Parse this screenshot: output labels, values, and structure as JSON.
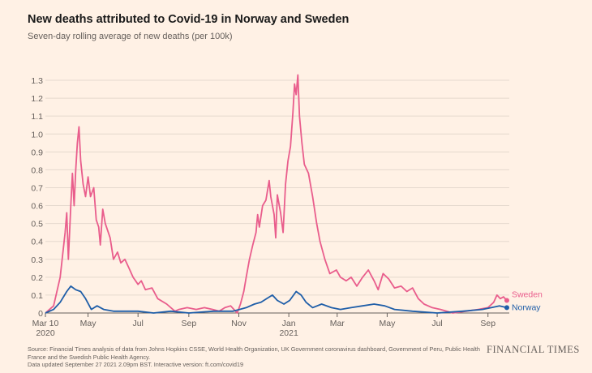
{
  "header": {
    "title": "New deaths attributed to Covid-19 in Norway and Sweden",
    "subtitle": "Seven-day rolling average of new deaths (per 100k)"
  },
  "footer": {
    "source": "Source: Financial Times analysis of data from Johns Hopkins CSSE, World Health Organization, UK Government coronavirus dashboard, Government of Peru, Public Health France and the Swedish Public Health Agency.",
    "updated": "Data updated September 27 2021 2.09pm BST. Interactive version: ft.com/covid19",
    "brand": "FINANCIAL TIMES"
  },
  "chart_data": {
    "type": "line",
    "title": "New deaths attributed to Covid-19 in Norway and Sweden",
    "subtitle": "Seven-day rolling average of new deaths (per 100k)",
    "xlabel": "",
    "ylabel": "",
    "x_range": [
      "2020-03-10",
      "2021-09-27"
    ],
    "ylim": [
      0,
      1.35
    ],
    "y_ticks": [
      "0",
      "0.1",
      "0.2",
      "0.3",
      "0.4",
      "0.5",
      "0.6",
      "0.7",
      "0.8",
      "0.9",
      "1.0",
      "1.1",
      "1.2",
      "1.3"
    ],
    "x_ticks": [
      {
        "date": "2020-03-10",
        "label": "Mar 10",
        "sublabel": "2020"
      },
      {
        "date": "2020-05-01",
        "label": "May",
        "sublabel": ""
      },
      {
        "date": "2020-07-01",
        "label": "Jul",
        "sublabel": ""
      },
      {
        "date": "2020-09-01",
        "label": "Sep",
        "sublabel": ""
      },
      {
        "date": "2020-11-01",
        "label": "Nov",
        "sublabel": ""
      },
      {
        "date": "2021-01-01",
        "label": "Jan",
        "sublabel": "2021"
      },
      {
        "date": "2021-03-01",
        "label": "Mar",
        "sublabel": ""
      },
      {
        "date": "2021-05-01",
        "label": "May",
        "sublabel": ""
      },
      {
        "date": "2021-07-01",
        "label": "Jul",
        "sublabel": ""
      },
      {
        "date": "2021-09-01",
        "label": "Sep",
        "sublabel": ""
      }
    ],
    "grid": true,
    "legend": "direct labels at line ends",
    "series": [
      {
        "name": "Sweden",
        "color": "#e95d8c",
        "points": [
          [
            "2020-03-10",
            0.0
          ],
          [
            "2020-03-20",
            0.04
          ],
          [
            "2020-03-28",
            0.2
          ],
          [
            "2020-04-03",
            0.45
          ],
          [
            "2020-04-05",
            0.56
          ],
          [
            "2020-04-07",
            0.3
          ],
          [
            "2020-04-10",
            0.6
          ],
          [
            "2020-04-12",
            0.78
          ],
          [
            "2020-04-14",
            0.6
          ],
          [
            "2020-04-16",
            0.8
          ],
          [
            "2020-04-18",
            0.95
          ],
          [
            "2020-04-20",
            1.04
          ],
          [
            "2020-04-22",
            0.85
          ],
          [
            "2020-04-25",
            0.72
          ],
          [
            "2020-04-28",
            0.65
          ],
          [
            "2020-05-01",
            0.76
          ],
          [
            "2020-05-04",
            0.65
          ],
          [
            "2020-05-08",
            0.7
          ],
          [
            "2020-05-11",
            0.52
          ],
          [
            "2020-05-14",
            0.48
          ],
          [
            "2020-05-16",
            0.38
          ],
          [
            "2020-05-19",
            0.58
          ],
          [
            "2020-05-22",
            0.5
          ],
          [
            "2020-05-28",
            0.42
          ],
          [
            "2020-06-01",
            0.3
          ],
          [
            "2020-06-06",
            0.34
          ],
          [
            "2020-06-10",
            0.28
          ],
          [
            "2020-06-15",
            0.3
          ],
          [
            "2020-06-20",
            0.25
          ],
          [
            "2020-06-25",
            0.2
          ],
          [
            "2020-07-01",
            0.16
          ],
          [
            "2020-07-05",
            0.18
          ],
          [
            "2020-07-10",
            0.13
          ],
          [
            "2020-07-18",
            0.14
          ],
          [
            "2020-07-25",
            0.08
          ],
          [
            "2020-08-05",
            0.05
          ],
          [
            "2020-08-15",
            0.01
          ],
          [
            "2020-08-20",
            0.02
          ],
          [
            "2020-08-30",
            0.03
          ],
          [
            "2020-09-10",
            0.02
          ],
          [
            "2020-09-20",
            0.03
          ],
          [
            "2020-09-30",
            0.02
          ],
          [
            "2020-10-08",
            0.01
          ],
          [
            "2020-10-15",
            0.03
          ],
          [
            "2020-10-22",
            0.04
          ],
          [
            "2020-10-30",
            0.0
          ],
          [
            "2020-11-03",
            0.05
          ],
          [
            "2020-11-07",
            0.12
          ],
          [
            "2020-11-10",
            0.2
          ],
          [
            "2020-11-14",
            0.3
          ],
          [
            "2020-11-18",
            0.38
          ],
          [
            "2020-11-22",
            0.45
          ],
          [
            "2020-11-24",
            0.55
          ],
          [
            "2020-11-26",
            0.48
          ],
          [
            "2020-11-30",
            0.6
          ],
          [
            "2020-12-04",
            0.63
          ],
          [
            "2020-12-08",
            0.74
          ],
          [
            "2020-12-10",
            0.65
          ],
          [
            "2020-12-14",
            0.55
          ],
          [
            "2020-12-16",
            0.42
          ],
          [
            "2020-12-18",
            0.66
          ],
          [
            "2020-12-22",
            0.56
          ],
          [
            "2020-12-25",
            0.45
          ],
          [
            "2020-12-28",
            0.72
          ],
          [
            "2020-12-31",
            0.85
          ],
          [
            "2021-01-03",
            0.93
          ],
          [
            "2021-01-06",
            1.12
          ],
          [
            "2021-01-08",
            1.28
          ],
          [
            "2021-01-10",
            1.22
          ],
          [
            "2021-01-12",
            1.33
          ],
          [
            "2021-01-14",
            1.1
          ],
          [
            "2021-01-17",
            0.95
          ],
          [
            "2021-01-20",
            0.83
          ],
          [
            "2021-01-25",
            0.78
          ],
          [
            "2021-01-30",
            0.65
          ],
          [
            "2021-02-04",
            0.5
          ],
          [
            "2021-02-08",
            0.4
          ],
          [
            "2021-02-14",
            0.3
          ],
          [
            "2021-02-20",
            0.22
          ],
          [
            "2021-02-28",
            0.24
          ],
          [
            "2021-03-05",
            0.2
          ],
          [
            "2021-03-12",
            0.18
          ],
          [
            "2021-03-18",
            0.2
          ],
          [
            "2021-03-25",
            0.15
          ],
          [
            "2021-04-01",
            0.2
          ],
          [
            "2021-04-08",
            0.24
          ],
          [
            "2021-04-15",
            0.18
          ],
          [
            "2021-04-20",
            0.13
          ],
          [
            "2021-04-26",
            0.22
          ],
          [
            "2021-05-03",
            0.19
          ],
          [
            "2021-05-10",
            0.14
          ],
          [
            "2021-05-18",
            0.15
          ],
          [
            "2021-05-25",
            0.12
          ],
          [
            "2021-06-01",
            0.14
          ],
          [
            "2021-06-08",
            0.08
          ],
          [
            "2021-06-15",
            0.05
          ],
          [
            "2021-06-25",
            0.03
          ],
          [
            "2021-07-05",
            0.02
          ],
          [
            "2021-07-20",
            0.0
          ],
          [
            "2021-08-05",
            0.01
          ],
          [
            "2021-08-20",
            0.02
          ],
          [
            "2021-09-01",
            0.03
          ],
          [
            "2021-09-08",
            0.06
          ],
          [
            "2021-09-12",
            0.1
          ],
          [
            "2021-09-16",
            0.08
          ],
          [
            "2021-09-20",
            0.09
          ],
          [
            "2021-09-24",
            0.07
          ]
        ]
      },
      {
        "name": "Norway",
        "color": "#1f5ea8",
        "points": [
          [
            "2020-03-10",
            0.0
          ],
          [
            "2020-03-20",
            0.02
          ],
          [
            "2020-03-28",
            0.06
          ],
          [
            "2020-04-05",
            0.12
          ],
          [
            "2020-04-10",
            0.15
          ],
          [
            "2020-04-16",
            0.13
          ],
          [
            "2020-04-22",
            0.12
          ],
          [
            "2020-04-28",
            0.08
          ],
          [
            "2020-05-05",
            0.02
          ],
          [
            "2020-05-12",
            0.04
          ],
          [
            "2020-05-20",
            0.02
          ],
          [
            "2020-06-01",
            0.01
          ],
          [
            "2020-06-15",
            0.01
          ],
          [
            "2020-07-01",
            0.01
          ],
          [
            "2020-07-20",
            0.0
          ],
          [
            "2020-08-10",
            0.01
          ],
          [
            "2020-09-01",
            0.0
          ],
          [
            "2020-10-01",
            0.01
          ],
          [
            "2020-10-25",
            0.01
          ],
          [
            "2020-11-10",
            0.03
          ],
          [
            "2020-11-20",
            0.05
          ],
          [
            "2020-11-28",
            0.06
          ],
          [
            "2020-12-05",
            0.08
          ],
          [
            "2020-12-12",
            0.1
          ],
          [
            "2020-12-18",
            0.07
          ],
          [
            "2020-12-26",
            0.05
          ],
          [
            "2021-01-02",
            0.07
          ],
          [
            "2021-01-10",
            0.12
          ],
          [
            "2021-01-16",
            0.1
          ],
          [
            "2021-01-22",
            0.06
          ],
          [
            "2021-01-30",
            0.03
          ],
          [
            "2021-02-10",
            0.05
          ],
          [
            "2021-02-22",
            0.03
          ],
          [
            "2021-03-05",
            0.02
          ],
          [
            "2021-03-18",
            0.03
          ],
          [
            "2021-04-01",
            0.04
          ],
          [
            "2021-04-15",
            0.05
          ],
          [
            "2021-04-28",
            0.04
          ],
          [
            "2021-05-10",
            0.02
          ],
          [
            "2021-06-01",
            0.01
          ],
          [
            "2021-07-01",
            0.0
          ],
          [
            "2021-08-01",
            0.01
          ],
          [
            "2021-08-25",
            0.02
          ],
          [
            "2021-09-05",
            0.03
          ],
          [
            "2021-09-15",
            0.04
          ],
          [
            "2021-09-24",
            0.03
          ]
        ]
      }
    ]
  }
}
